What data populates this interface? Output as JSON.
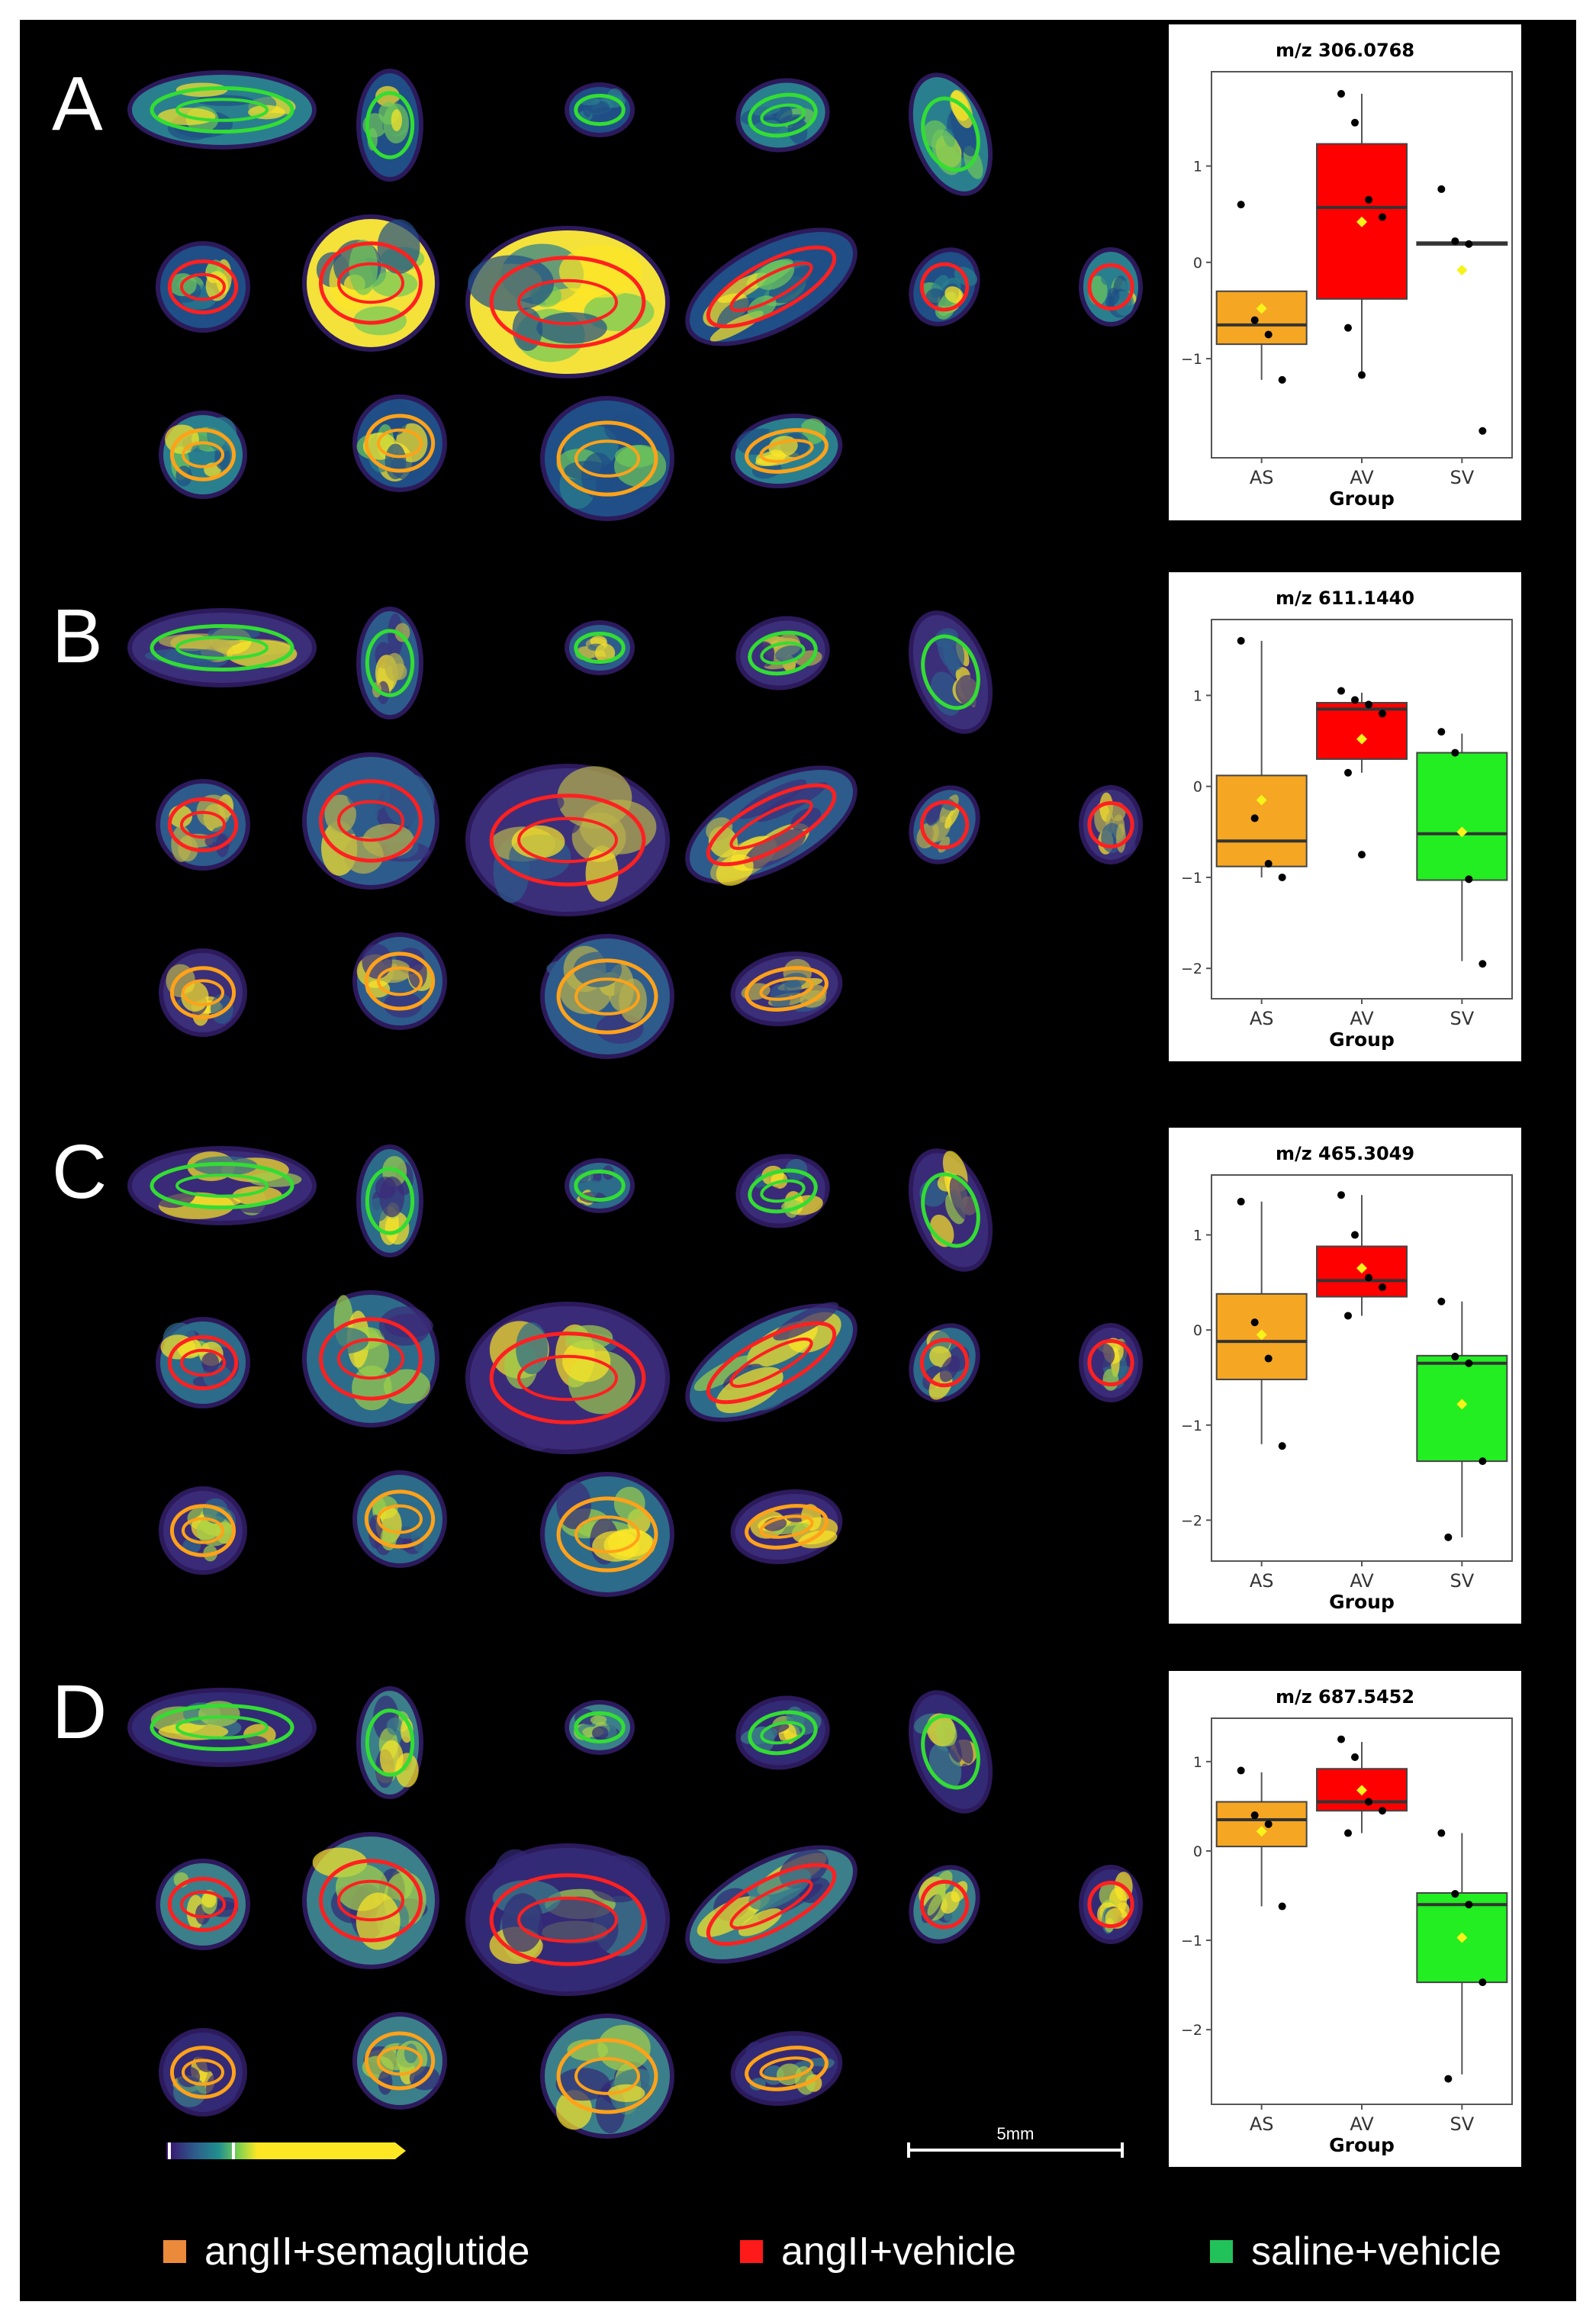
{
  "panels": [
    {
      "letter": "A"
    },
    {
      "letter": "B"
    },
    {
      "letter": "C"
    },
    {
      "letter": "D"
    }
  ],
  "scale_bar": {
    "label": "5mm"
  },
  "legend": [
    {
      "label": "angII+semaglutide",
      "color": "#ec8a3c"
    },
    {
      "label": "angII+vehicle",
      "color": "#ff1a1a"
    },
    {
      "label": "saline+vehicle",
      "color": "#22c25a"
    }
  ],
  "colors": {
    "AS": "#f5a623",
    "AV": "#ff0000",
    "SV": "#22ee22",
    "mean_marker": "#f7f31a",
    "green_roi": "#33dd33",
    "red_roi": "#ff2020",
    "orange_roi": "#ffa21a"
  },
  "chart_data": [
    {
      "type": "box",
      "title": "m/z 306.0768",
      "xlabel": "Group",
      "categories": [
        "AS",
        "AV",
        "SV"
      ],
      "yticks": [
        -1,
        0,
        1
      ],
      "ylim": [
        -1.95,
        1.9
      ],
      "boxes": [
        {
          "group": "AS",
          "q1": -0.85,
          "median": -0.65,
          "q3": -0.3,
          "whisker_low": -1.22,
          "whisker_high": -0.3,
          "mean": -0.48,
          "points": [
            0.6,
            -0.6,
            -0.75,
            -1.22
          ]
        },
        {
          "group": "AV",
          "q1": -0.38,
          "median": 0.57,
          "q3": 1.23,
          "whisker_low": -1.17,
          "whisker_high": 1.75,
          "mean": 0.42,
          "points": [
            1.75,
            1.45,
            0.65,
            0.47,
            -0.68,
            -1.17
          ]
        },
        {
          "group": "SV",
          "q1": 0.18,
          "median": 0.2,
          "q3": 0.21,
          "whisker_low": 0.18,
          "whisker_high": 0.21,
          "mean": -0.08,
          "points": [
            0.76,
            0.22,
            0.19,
            -1.75
          ]
        }
      ]
    },
    {
      "type": "box",
      "title": "m/z 611.1440",
      "xlabel": "Group",
      "categories": [
        "AS",
        "AV",
        "SV"
      ],
      "yticks": [
        -2,
        -1,
        0,
        1
      ],
      "ylim": [
        -2.25,
        1.75
      ],
      "boxes": [
        {
          "group": "AS",
          "q1": -0.88,
          "median": -0.6,
          "q3": 0.12,
          "whisker_low": -1.0,
          "whisker_high": 1.6,
          "mean": -0.15,
          "points": [
            1.6,
            -0.35,
            -0.85,
            -1.0
          ]
        },
        {
          "group": "AV",
          "q1": 0.3,
          "median": 0.85,
          "q3": 0.92,
          "whisker_low": 0.15,
          "whisker_high": 1.03,
          "mean": 0.52,
          "points": [
            1.05,
            0.95,
            0.9,
            0.8,
            0.15,
            -0.75
          ]
        },
        {
          "group": "SV",
          "q1": -1.03,
          "median": -0.52,
          "q3": 0.37,
          "whisker_low": -1.92,
          "whisker_high": 0.58,
          "mean": -0.5,
          "points": [
            0.6,
            0.37,
            -1.02,
            -1.95
          ]
        }
      ]
    },
    {
      "type": "box",
      "title": "m/z 465.3049",
      "xlabel": "Group",
      "categories": [
        "AS",
        "AV",
        "SV"
      ],
      "yticks": [
        -2,
        -1,
        0,
        1
      ],
      "ylim": [
        -2.35,
        1.55
      ],
      "boxes": [
        {
          "group": "AS",
          "q1": -0.52,
          "median": -0.12,
          "q3": 0.38,
          "whisker_low": -1.2,
          "whisker_high": 1.35,
          "mean": -0.05,
          "points": [
            1.35,
            0.08,
            -0.3,
            -1.22
          ]
        },
        {
          "group": "AV",
          "q1": 0.35,
          "median": 0.52,
          "q3": 0.88,
          "whisker_low": 0.15,
          "whisker_high": 1.42,
          "mean": 0.65,
          "points": [
            1.42,
            1.0,
            0.55,
            0.45,
            0.15
          ]
        },
        {
          "group": "SV",
          "q1": -1.38,
          "median": -0.35,
          "q3": -0.27,
          "whisker_low": -2.18,
          "whisker_high": 0.3,
          "mean": -0.78,
          "points": [
            0.3,
            -0.28,
            -0.35,
            -1.38,
            -2.18
          ]
        }
      ]
    },
    {
      "type": "box",
      "title": "m/z 687.5452",
      "xlabel": "Group",
      "categories": [
        "AS",
        "AV",
        "SV"
      ],
      "yticks": [
        -2,
        -1,
        0,
        1
      ],
      "ylim": [
        -2.75,
        1.4
      ],
      "boxes": [
        {
          "group": "AS",
          "q1": 0.05,
          "median": 0.35,
          "q3": 0.55,
          "whisker_low": -0.62,
          "whisker_high": 0.88,
          "mean": 0.22,
          "points": [
            0.9,
            0.4,
            0.3,
            -0.62
          ]
        },
        {
          "group": "AV",
          "q1": 0.45,
          "median": 0.55,
          "q3": 0.92,
          "whisker_low": 0.2,
          "whisker_high": 1.22,
          "mean": 0.68,
          "points": [
            1.25,
            1.05,
            0.55,
            0.45,
            0.2
          ]
        },
        {
          "group": "SV",
          "q1": -1.47,
          "median": -0.6,
          "q3": -0.47,
          "whisker_low": -2.5,
          "whisker_high": 0.2,
          "mean": -0.97,
          "points": [
            0.2,
            -0.48,
            -0.6,
            -1.47,
            -2.55
          ]
        }
      ]
    }
  ]
}
